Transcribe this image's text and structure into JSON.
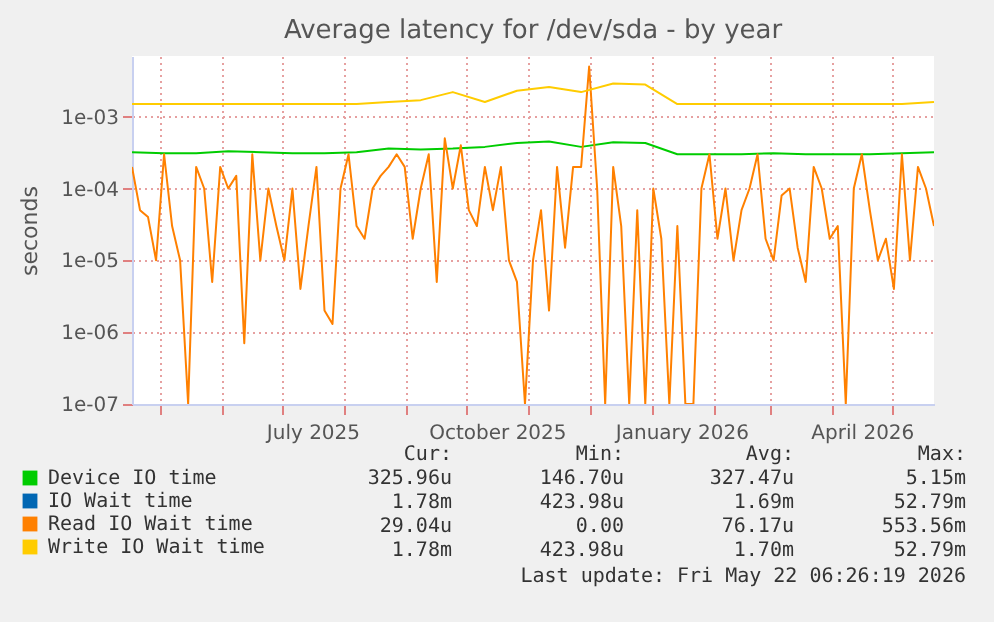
{
  "chart_data": {
    "type": "line",
    "title": "Average latency for /dev/sda - by year",
    "ylabel": "seconds",
    "log": "y",
    "grid": true,
    "legend": "bottom",
    "xlim": [
      "2025-04-17",
      "2026-05-22"
    ],
    "xticks": [
      {
        "value": "2025-05-01",
        "label": null
      },
      {
        "value": "2025-06-01",
        "label": null
      },
      {
        "value": "2025-07-01",
        "label": null
      },
      {
        "value": "2025-07-16",
        "label": "July 2025"
      },
      {
        "value": "2025-08-01",
        "label": null
      },
      {
        "value": "2025-09-01",
        "label": null
      },
      {
        "value": "2025-10-01",
        "label": null
      },
      {
        "value": "2025-10-16",
        "label": "October 2025"
      },
      {
        "value": "2025-11-01",
        "label": null
      },
      {
        "value": "2025-12-01",
        "label": null
      },
      {
        "value": "2026-01-01",
        "label": null
      },
      {
        "value": "2026-01-16",
        "label": "January 2026"
      },
      {
        "value": "2026-02-01",
        "label": null
      },
      {
        "value": "2026-03-01",
        "label": null
      },
      {
        "value": "2026-04-01",
        "label": null
      },
      {
        "value": "2026-04-16",
        "label": "April 2026"
      },
      {
        "value": "2026-05-01",
        "label": null
      }
    ],
    "ylim": [
      1e-07,
      0.007
    ],
    "yticks": [
      {
        "value": 1e-07,
        "label": "1e-07"
      },
      {
        "value": 1e-06,
        "label": "1e-06"
      },
      {
        "value": 1e-05,
        "label": "1e-05"
      },
      {
        "value": 0.0001,
        "label": "1e-04"
      },
      {
        "value": 0.001,
        "label": "1e-03"
      }
    ],
    "series": [
      {
        "name": "Device IO time",
        "color": "#00cc00",
        "x": [
          "2025-04-17",
          "2025-05-03",
          "2025-05-19",
          "2025-06-04",
          "2025-06-20",
          "2025-07-06",
          "2025-07-22",
          "2025-08-07",
          "2025-08-23",
          "2025-09-08",
          "2025-09-24",
          "2025-10-10",
          "2025-10-26",
          "2025-11-11",
          "2025-11-27",
          "2025-12-13",
          "2025-12-29",
          "2026-01-14",
          "2026-01-30",
          "2026-02-15",
          "2026-03-03",
          "2026-03-19",
          "2026-04-04",
          "2026-04-20",
          "2026-05-06",
          "2026-05-22"
        ],
        "values": [
          0.00032,
          0.00031,
          0.00031,
          0.00033,
          0.00032,
          0.00031,
          0.00031,
          0.00032,
          0.00036,
          0.00035,
          0.00036,
          0.00038,
          0.00043,
          0.00045,
          0.00038,
          0.00044,
          0.00043,
          0.0003,
          0.0003,
          0.0003,
          0.00031,
          0.0003,
          0.0003,
          0.0003,
          0.00031,
          0.00032
        ]
      },
      {
        "name": "IO Wait time",
        "color": "#0066b3"
      },
      {
        "name": "Read IO Wait time",
        "color": "#ff8000",
        "x": [
          "2025-04-17",
          "2025-04-21",
          "2025-04-25",
          "2025-04-29",
          "2025-05-03",
          "2025-05-07",
          "2025-05-11",
          "2025-05-15",
          "2025-05-19",
          "2025-05-23",
          "2025-05-27",
          "2025-05-31",
          "2025-06-04",
          "2025-06-08",
          "2025-06-12",
          "2025-06-16",
          "2025-06-20",
          "2025-06-24",
          "2025-06-28",
          "2025-07-02",
          "2025-07-06",
          "2025-07-10",
          "2025-07-14",
          "2025-07-18",
          "2025-07-22",
          "2025-07-26",
          "2025-07-30",
          "2025-08-03",
          "2025-08-07",
          "2025-08-11",
          "2025-08-15",
          "2025-08-19",
          "2025-08-23",
          "2025-08-27",
          "2025-08-31",
          "2025-09-04",
          "2025-09-08",
          "2025-09-12",
          "2025-09-16",
          "2025-09-20",
          "2025-09-24",
          "2025-09-28",
          "2025-10-02",
          "2025-10-06",
          "2025-10-10",
          "2025-10-14",
          "2025-10-18",
          "2025-10-22",
          "2025-10-26",
          "2025-10-30",
          "2025-11-03",
          "2025-11-07",
          "2025-11-11",
          "2025-11-15",
          "2025-11-19",
          "2025-11-23",
          "2025-11-27",
          "2025-12-01",
          "2025-12-05",
          "2025-12-09",
          "2025-12-13",
          "2025-12-17",
          "2025-12-21",
          "2025-12-25",
          "2025-12-29",
          "2026-01-02",
          "2026-01-06",
          "2026-01-10",
          "2026-01-14",
          "2026-01-18",
          "2026-01-22",
          "2026-01-26",
          "2026-01-30",
          "2026-02-03",
          "2026-02-07",
          "2026-02-11",
          "2026-02-15",
          "2026-02-19",
          "2026-02-23",
          "2026-02-27",
          "2026-03-03",
          "2026-03-07",
          "2026-03-11",
          "2026-03-15",
          "2026-03-19",
          "2026-03-23",
          "2026-03-27",
          "2026-03-31",
          "2026-04-04",
          "2026-04-08",
          "2026-04-12",
          "2026-04-16",
          "2026-04-20",
          "2026-04-24",
          "2026-04-28",
          "2026-05-02",
          "2026-05-06",
          "2026-05-10",
          "2026-05-14",
          "2026-05-18",
          "2026-05-22"
        ],
        "values": [
          0.0002,
          5e-05,
          4e-05,
          1e-05,
          0.0003,
          3e-05,
          1e-05,
          1e-07,
          0.0002,
          0.0001,
          5e-06,
          0.0002,
          0.0001,
          0.00015,
          7e-07,
          0.0003,
          1e-05,
          0.0001,
          3e-05,
          1e-05,
          0.0001,
          4e-06,
          3e-05,
          0.0002,
          2e-06,
          1.3e-06,
          0.0001,
          0.0003,
          3e-05,
          2e-05,
          0.0001,
          0.00015,
          0.0002,
          0.0003,
          0.0002,
          2e-05,
          0.0001,
          0.0003,
          5e-06,
          0.0005,
          0.0001,
          0.0004,
          5e-05,
          3e-05,
          0.0002,
          5e-05,
          0.0002,
          1e-05,
          5e-06,
          1e-07,
          1e-05,
          5e-05,
          2e-06,
          0.0002,
          1.5e-05,
          0.0002,
          0.0002,
          0.005,
          0.0001,
          1e-07,
          0.0002,
          3e-05,
          1e-07,
          5e-05,
          1e-07,
          0.0001,
          2e-05,
          1e-07,
          3e-05,
          1e-07,
          1e-07,
          0.0001,
          0.0003,
          2e-05,
          0.0001,
          1e-05,
          5e-05,
          0.0001,
          0.0003,
          2e-05,
          1e-05,
          8e-05,
          0.0001,
          1.5e-05,
          5e-06,
          0.0002,
          0.0001,
          2e-05,
          3e-05,
          1e-07,
          0.0001,
          0.0003,
          5e-05,
          1e-05,
          2e-05,
          4e-06,
          0.0003,
          1e-05,
          0.0002,
          0.0001,
          3e-05
        ]
      },
      {
        "name": "Write IO Wait time",
        "color": "#ffcc00",
        "x": [
          "2025-04-17",
          "2025-05-03",
          "2025-05-19",
          "2025-06-04",
          "2025-06-20",
          "2025-07-06",
          "2025-07-22",
          "2025-08-07",
          "2025-08-23",
          "2025-09-08",
          "2025-09-24",
          "2025-10-10",
          "2025-10-26",
          "2025-11-11",
          "2025-11-27",
          "2025-12-13",
          "2025-12-29",
          "2026-01-14",
          "2026-01-30",
          "2026-02-15",
          "2026-03-03",
          "2026-03-19",
          "2026-04-04",
          "2026-04-20",
          "2026-05-06",
          "2026-05-22"
        ],
        "values": [
          0.0015,
          0.0015,
          0.0015,
          0.0015,
          0.0015,
          0.0015,
          0.0015,
          0.0015,
          0.0016,
          0.0017,
          0.0022,
          0.0016,
          0.0023,
          0.0026,
          0.0022,
          0.0029,
          0.0028,
          0.0015,
          0.0015,
          0.0015,
          0.0015,
          0.0015,
          0.0015,
          0.0015,
          0.0015,
          0.0016
        ]
      }
    ],
    "annotations": [
      "Cur:",
      "Min:",
      "Avg:",
      "Max:",
      "325.96u",
      "146.70u",
      "327.47u",
      "5.15m",
      "1.78m",
      "423.98u",
      "1.69m",
      "52.79m",
      "29.04u",
      "0.00",
      "76.17u",
      "553.56m",
      "1.78m",
      "423.98u",
      "1.70m",
      "52.79m",
      "Last update: Fri May 22 06:26:19 2026"
    ]
  }
}
